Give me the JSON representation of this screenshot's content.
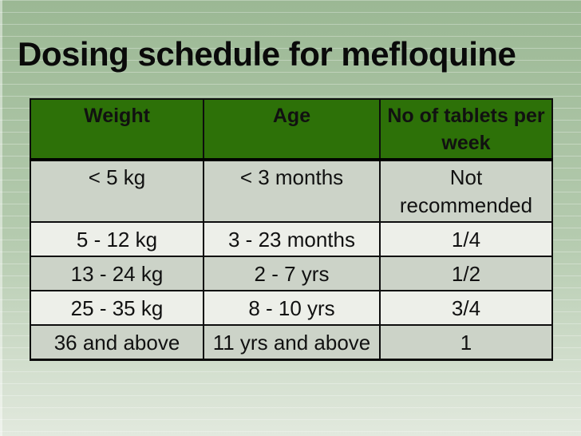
{
  "slide": {
    "title": "Dosing schedule for mefloquine"
  },
  "table": {
    "columns": [
      "Weight",
      "Age",
      "No of tablets per week"
    ],
    "rows": [
      [
        "< 5 kg",
        "< 3 months",
        "Not recommended"
      ],
      [
        "5 - 12 kg",
        "3 - 23 months",
        "1/4"
      ],
      [
        "13 - 24 kg",
        "2 - 7 yrs",
        "1/2"
      ],
      [
        "25 - 35 kg",
        "8 - 10 yrs",
        "3/4"
      ],
      [
        "36 and above",
        "11 yrs and above",
        "1"
      ]
    ]
  },
  "colors": {
    "header_bg": "#2d7108",
    "row_odd_bg": "#ccd3c8",
    "row_even_bg": "#edefe9",
    "bg_top": "#9bb894",
    "bg_mid": "#b5cbaf",
    "bg_bottom": "#e2e9de",
    "border": "#0d0d0d",
    "title": "#0a0a0a"
  }
}
